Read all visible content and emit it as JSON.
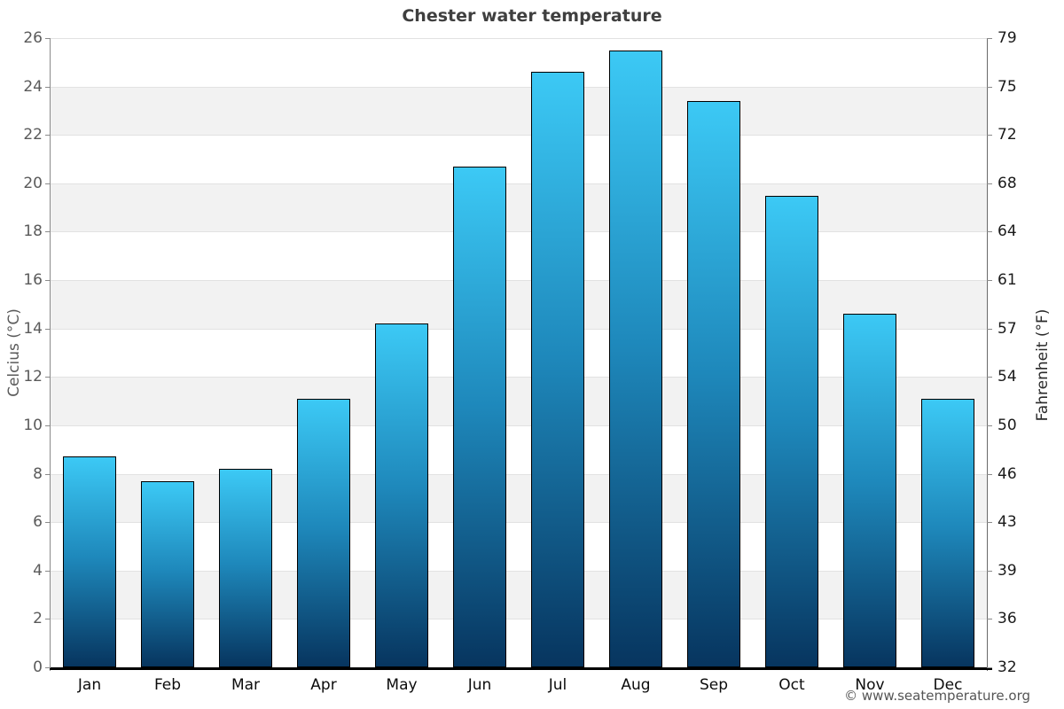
{
  "title": "Chester water temperature",
  "footer": "© www.seatemperature.org",
  "chart_data": {
    "type": "bar",
    "title": "Chester water temperature",
    "categories": [
      "Jan",
      "Feb",
      "Mar",
      "Apr",
      "May",
      "Jun",
      "Jul",
      "Aug",
      "Sep",
      "Oct",
      "Nov",
      "Dec"
    ],
    "values": [
      8.7,
      7.7,
      8.2,
      11.1,
      14.2,
      20.7,
      24.6,
      25.5,
      23.4,
      19.5,
      14.6,
      11.1
    ],
    "values_unit": "°C",
    "ylabel": "Celcius (°C)",
    "ylabel_right": "Fahrenheit (°F)",
    "xlabel": "",
    "ylim": [
      0,
      26
    ],
    "yticks": [
      26,
      24,
      22,
      20,
      18,
      16,
      14,
      12,
      10,
      8,
      6,
      4,
      2,
      0
    ],
    "yticks_right_labels": [
      "79",
      "75",
      "72",
      "68",
      "64",
      "61",
      "57",
      "54",
      "50",
      "46",
      "43",
      "39",
      "36",
      "32"
    ],
    "grid": true,
    "legend": false,
    "colors": {
      "bar_gradient_top": "#3cc9f5",
      "bar_gradient_mid": "#1e88bb",
      "bar_gradient_bottom": "#07355f",
      "bar_border": "#000000",
      "stripe_band": "#f2f2f2",
      "gridline": "#e2e2e2",
      "title_text": "#3f3f3f",
      "left_tick_text": "#5a5a5a",
      "right_tick_text": "#1a1a1a",
      "month_text": "#0c0c0c"
    }
  }
}
